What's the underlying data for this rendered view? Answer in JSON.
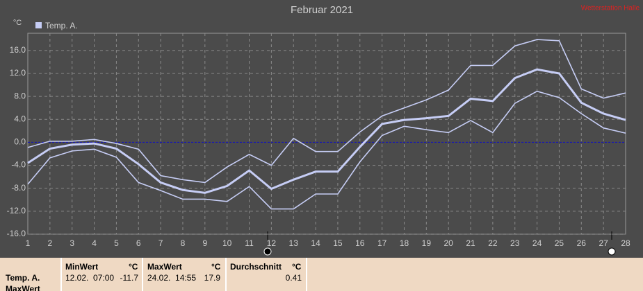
{
  "chart_data": {
    "type": "line",
    "title": "Februar 2021",
    "corner_label": "Wetterstation Halle",
    "y_label": "°C",
    "x": [
      1,
      2,
      3,
      4,
      5,
      6,
      7,
      8,
      9,
      10,
      11,
      12,
      13,
      14,
      15,
      16,
      17,
      18,
      19,
      20,
      21,
      22,
      23,
      24,
      25,
      26,
      27,
      28
    ],
    "xlim": [
      1,
      28
    ],
    "xticks": [
      1,
      2,
      3,
      4,
      5,
      6,
      7,
      8,
      9,
      10,
      11,
      12,
      13,
      14,
      15,
      16,
      17,
      18,
      19,
      20,
      21,
      22,
      23,
      24,
      25,
      26,
      27,
      28
    ],
    "ylim": [
      -16,
      19
    ],
    "yticks": [
      {
        "value": -16,
        "label": "-16.0"
      },
      {
        "value": -12,
        "label": "-12.0"
      },
      {
        "value": -8,
        "label": "-8.0"
      },
      {
        "value": -4,
        "label": "-4.0"
      },
      {
        "value": 0,
        "label": "0.0"
      },
      {
        "value": 4,
        "label": "4.0"
      },
      {
        "value": 8,
        "label": "8.0"
      },
      {
        "value": 12,
        "label": "12.0"
      },
      {
        "value": 16,
        "label": "16.0"
      }
    ],
    "grid": true,
    "legend": "top-left",
    "series": [
      {
        "name": "Temp. A.",
        "color": "#c6cdf5",
        "values": [
          -3.6,
          -1.1,
          -0.4,
          -0.2,
          -1.1,
          -3.8,
          -7.0,
          -8.3,
          -8.8,
          -7.6,
          -4.9,
          -8.1,
          -6.5,
          -5.1,
          -5.1,
          -0.8,
          3.2,
          3.9,
          4.2,
          4.6,
          7.6,
          7.2,
          11.2,
          12.7,
          12.0,
          6.9,
          5.0,
          3.9
        ]
      },
      {
        "color": "#c6cdf5",
        "values": [
          -0.9,
          0.2,
          0.2,
          0.5,
          -0.2,
          -1.2,
          -5.8,
          -6.5,
          -7.0,
          -4.3,
          -2.1,
          -4.0,
          0.7,
          -1.6,
          -1.6,
          1.8,
          4.6,
          6.0,
          7.4,
          9.1,
          13.4,
          13.4,
          16.8,
          17.9,
          17.7,
          9.3,
          7.7,
          8.6
        ]
      },
      {
        "color": "#c6cdf5",
        "values": [
          -7.3,
          -2.7,
          -1.5,
          -1.2,
          -2.6,
          -7.0,
          -8.4,
          -9.9,
          -9.9,
          -10.3,
          -7.7,
          -11.6,
          -11.6,
          -9.0,
          -9.0,
          -3.4,
          1.2,
          2.8,
          2.2,
          1.7,
          3.8,
          1.7,
          6.8,
          8.9,
          7.8,
          5.0,
          2.5,
          1.6
        ]
      }
    ]
  },
  "table": {
    "row_labels": [
      "Temp. A.",
      "MaxWert"
    ],
    "columns": [
      {
        "header": "MinWert",
        "unit": "°C",
        "time": "12.02.  07:00",
        "value": -11.7
      },
      {
        "header": "MaxWert",
        "unit": "°C",
        "time": "24.02.  14:55",
        "value": 17.9
      },
      {
        "header": "Durchschnitt",
        "unit": "°C",
        "value": 0.41
      }
    ]
  }
}
